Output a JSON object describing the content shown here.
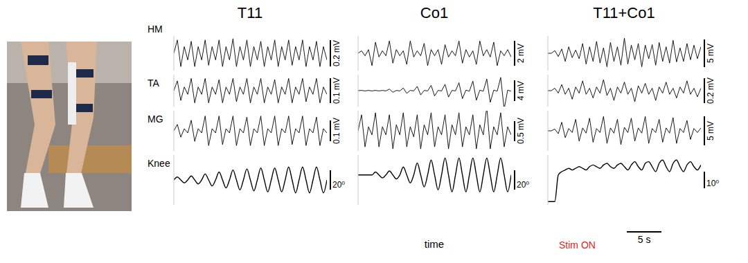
{
  "chart_data": [
    {
      "type": "line",
      "title": "T11",
      "tick_labels": false,
      "stim": 0,
      "xlim": [
        0,
        22
      ],
      "x": [
        0,
        0.5,
        1,
        1.5,
        2,
        2.5,
        3,
        3.5,
        4,
        4.5,
        5,
        5.5,
        6,
        6.5,
        7,
        7.5,
        8,
        8.5,
        9,
        9.5,
        10,
        10.5,
        11,
        11.5,
        12,
        12.5,
        13,
        13.5,
        14,
        14.5,
        15,
        15.5,
        16,
        16.5,
        17,
        17.5,
        18,
        18.5,
        19,
        19.5,
        20,
        20.5,
        21,
        21.5,
        22
      ],
      "series": [
        {
          "color": "#000000",
          "ylim": [
            -0.13,
            0.13
          ],
          "scale_bar": {
            "value": 0.2,
            "label": "0.2 mV"
          },
          "values": [
            0,
            0.1,
            -0.1,
            0.05,
            -0.05,
            0.09,
            -0.1,
            0.05,
            -0.05,
            0.1,
            -0.09,
            0.05,
            -0.05,
            0.1,
            -0.1,
            0.05,
            -0.05,
            0.11,
            -0.1,
            0.05,
            -0.05,
            0.1,
            -0.1,
            0.05,
            -0.05,
            0.09,
            -0.1,
            0.05,
            -0.05,
            0.1,
            -0.1,
            0.05,
            -0.05,
            0.1,
            -0.09,
            0.05,
            -0.05,
            0.1,
            -0.1,
            0.05,
            -0.05,
            0.09,
            -0.1,
            0.05,
            -0.05
          ]
        },
        {
          "color": "#000000",
          "ylim": [
            -0.065,
            0.065
          ],
          "scale_bar": {
            "value": 0.1,
            "label": "0.1 mV"
          },
          "values": [
            0,
            0.04,
            -0.04,
            0.015,
            -0.015,
            0.05,
            -0.05,
            0.015,
            -0.015,
            0.05,
            -0.05,
            0.015,
            -0.015,
            0.045,
            -0.05,
            0.015,
            -0.015,
            0.05,
            -0.045,
            0.015,
            -0.015,
            0.05,
            -0.05,
            0.015,
            -0.015,
            0.05,
            -0.05,
            0.015,
            -0.015,
            0.045,
            -0.05,
            0.015,
            -0.015,
            0.05,
            -0.05,
            0.015,
            -0.015,
            0.05,
            -0.045,
            0.015,
            -0.015,
            0.05,
            -0.05,
            0.015,
            -0.015
          ]
        },
        {
          "color": "#000000",
          "ylim": [
            -0.095,
            0.095
          ],
          "scale_bar": {
            "value": 0.1,
            "label": "0.1 mV"
          },
          "values": [
            0,
            0.03,
            -0.03,
            0.01,
            -0.01,
            0.05,
            -0.05,
            0.01,
            -0.01,
            0.07,
            -0.07,
            0.01,
            -0.01,
            0.07,
            -0.065,
            0.01,
            -0.01,
            0.07,
            -0.07,
            0.01,
            -0.01,
            0.065,
            -0.07,
            0.01,
            -0.01,
            0.07,
            -0.07,
            0.01,
            -0.01,
            0.07,
            -0.07,
            0.01,
            -0.01,
            0.07,
            -0.065,
            0.01,
            -0.01,
            0.07,
            -0.07,
            0.01,
            -0.01,
            0.065,
            -0.07,
            0.01,
            -0.01
          ]
        },
        {
          "color": "#000000",
          "ylim": [
            0,
            50
          ],
          "scale_bar": {
            "value": 20,
            "label": "20⁰"
          },
          "values": [
            25,
            28,
            25,
            22,
            25,
            29,
            25,
            21,
            25,
            31,
            25,
            19,
            25,
            33,
            25,
            17,
            25,
            35,
            25,
            15,
            25,
            36,
            25,
            14,
            25,
            37,
            25,
            13,
            25,
            37,
            25,
            13,
            25,
            38,
            25,
            12,
            25,
            38,
            25,
            12,
            25,
            38,
            25,
            12,
            25
          ]
        }
      ]
    },
    {
      "type": "line",
      "title": "Co1",
      "tick_labels": false,
      "stim": 2,
      "xlim": [
        0,
        22
      ],
      "x": [
        0,
        0.5,
        1,
        1.5,
        2,
        2.5,
        3,
        3.5,
        4,
        4.5,
        5,
        5.5,
        6,
        6.5,
        7,
        7.5,
        8,
        8.5,
        9,
        9.5,
        10,
        10.5,
        11,
        11.5,
        12,
        12.5,
        13,
        13.5,
        14,
        14.5,
        15,
        15.5,
        16,
        16.5,
        17,
        17.5,
        18,
        18.5,
        19,
        19.5,
        20,
        20.5,
        21,
        21.5,
        22
      ],
      "series": [
        {
          "color": "#000000",
          "ylim": [
            -1.4,
            1.4
          ],
          "scale_bar": {
            "value": 2,
            "label": "2 mV"
          },
          "values": [
            0,
            0.2,
            -0.2,
            0.3,
            -1.0,
            0.9,
            -0.3,
            0.2,
            -0.2,
            1.0,
            -0.8,
            0.3,
            -0.2,
            0.2,
            -0.9,
            1.0,
            -0.3,
            0.2,
            -0.2,
            0.8,
            -1.0,
            0.3,
            -0.2,
            0.3,
            -0.9,
            0.7,
            -0.3,
            0.2,
            -0.2,
            1.0,
            -0.8,
            0.3,
            -0.3,
            0.2,
            -0.9,
            1.0,
            -0.2,
            0.3,
            -0.3,
            0.9,
            -1.0,
            0.2,
            -0.2,
            0.3,
            -0.3
          ]
        },
        {
          "color": "#000000",
          "ylim": [
            -3,
            3
          ],
          "scale_bar": {
            "value": 4,
            "label": "4 mV"
          },
          "values": [
            0,
            0.05,
            -0.05,
            0.05,
            -0.05,
            0.05,
            -0.05,
            0.05,
            -0.05,
            0.3,
            -0.3,
            0.05,
            -0.05,
            0.5,
            -0.5,
            0.05,
            -0.05,
            0.8,
            -0.8,
            0.05,
            -0.05,
            1.0,
            -1.0,
            0.05,
            -0.05,
            1.2,
            -1.2,
            0.05,
            -0.05,
            1.5,
            -1.5,
            0.1,
            -0.1,
            1.8,
            -1.8,
            0.1,
            -0.1,
            2.2,
            -2.2,
            0.1,
            -0.1,
            2.5,
            -3.5,
            0.1,
            -0.1
          ]
        },
        {
          "color": "#000000",
          "ylim": [
            -0.5,
            0.5
          ],
          "scale_bar": {
            "value": 0.5,
            "label": "0.5 mV"
          },
          "values": [
            0,
            0.4,
            -0.4,
            0.1,
            -0.1,
            0.45,
            -0.4,
            0.1,
            -0.1,
            0.4,
            -0.45,
            0.15,
            -0.1,
            0.45,
            -0.4,
            0.1,
            -0.15,
            0.4,
            -0.45,
            0.15,
            -0.1,
            0.45,
            -0.4,
            0.1,
            -0.1,
            0.4,
            -0.45,
            0.15,
            -0.1,
            0.45,
            -0.4,
            0.1,
            -0.1,
            0.4,
            -0.45,
            0.15,
            -0.1,
            0.6,
            -0.45,
            0.1,
            -0.1,
            0.45,
            -0.4,
            0.1,
            -0.1
          ]
        },
        {
          "color": "#000000",
          "ylim": [
            0,
            50
          ],
          "scale_bar": {
            "value": 20,
            "label": "20⁰"
          },
          "values": [
            30,
            30,
            30,
            30,
            30,
            33,
            30,
            27,
            30,
            34,
            30,
            26,
            30,
            38,
            30,
            22,
            30,
            42,
            30,
            18,
            30,
            45,
            30,
            15,
            30,
            47,
            30,
            13,
            30,
            47,
            30,
            13,
            30,
            47,
            30,
            13,
            30,
            47,
            30,
            13,
            30,
            47,
            30,
            13,
            30
          ]
        }
      ]
    },
    {
      "type": "line",
      "title": "T11+Co1",
      "tick_labels": false,
      "stim": 1,
      "xlim": [
        0,
        22
      ],
      "x": [
        0,
        0.5,
        1,
        1.5,
        2,
        2.5,
        3,
        3.5,
        4,
        4.5,
        5,
        5.5,
        6,
        6.5,
        7,
        7.5,
        8,
        8.5,
        9,
        9.5,
        10,
        10.5,
        11,
        11.5,
        12,
        12.5,
        13,
        13.5,
        14,
        14.5,
        15,
        15.5,
        16,
        16.5,
        17,
        17.5,
        18,
        18.5,
        19,
        19.5,
        20,
        20.5,
        21,
        21.5,
        22
      ],
      "series": [
        {
          "color": "#000000",
          "ylim": [
            -3.2,
            3.2
          ],
          "scale_bar": {
            "value": 5,
            "label": "5 mV"
          },
          "values": [
            0,
            0,
            0.5,
            -0.6,
            0.8,
            -1.5,
            1.2,
            -0.8,
            0.6,
            -1.0,
            1.8,
            -2.0,
            1.2,
            -1.5,
            2.2,
            -1.8,
            1.0,
            -2.5,
            2.0,
            -1.5,
            1.2,
            -2.2,
            2.8,
            -2.0,
            1.5,
            -1.2,
            1.8,
            -2.5,
            1.5,
            -1.0,
            1.6,
            -2.2,
            2.0,
            -1.5,
            1.2,
            -1.8,
            2.4,
            -1.6,
            1.0,
            -1.5,
            1.8,
            -1.2,
            1.5,
            -1.0,
            1.2
          ]
        },
        {
          "color": "#000000",
          "ylim": [
            -0.13,
            0.13
          ],
          "scale_bar": {
            "value": 0.2,
            "label": "0.2 mV"
          },
          "values": [
            0,
            0,
            0.02,
            -0.02,
            0.05,
            -0.03,
            0.02,
            -0.07,
            0.03,
            -0.02,
            0.08,
            -0.03,
            0.02,
            -0.06,
            0.03,
            -0.02,
            0.09,
            -0.04,
            0.02,
            -0.08,
            0.03,
            -0.02,
            0.07,
            -0.03,
            0.02,
            -0.09,
            0.04,
            -0.02,
            0.06,
            -0.03,
            0.02,
            -0.08,
            0.03,
            -0.02,
            0.07,
            -0.03,
            0.02,
            -0.06,
            0.03,
            -0.02,
            0.08,
            -0.03,
            0.02,
            -0.05,
            0.02
          ]
        },
        {
          "color": "#000000",
          "ylim": [
            -3.5,
            3.5
          ],
          "scale_bar": {
            "value": 5,
            "label": "5 mV"
          },
          "values": [
            0,
            0,
            0.3,
            -0.5,
            1.5,
            -1.2,
            0.4,
            -0.3,
            2.0,
            -1.8,
            0.5,
            -0.4,
            2.2,
            -2.0,
            0.4,
            -0.3,
            2.5,
            -2.2,
            0.5,
            -0.4,
            2.0,
            -2.4,
            0.6,
            -0.3,
            2.2,
            -1.8,
            0.5,
            -0.4,
            2.5,
            -2.2,
            0.4,
            -0.3,
            2.0,
            -2.0,
            0.5,
            -0.4,
            2.3,
            -2.2,
            0.4,
            -0.3,
            1.8,
            -1.5,
            0.4,
            -0.3,
            0.5
          ]
        },
        {
          "color": "#000000",
          "ylim": [
            0,
            30
          ],
          "scale_bar": {
            "value": 10,
            "label": "10⁰"
          },
          "values": [
            2,
            2,
            2,
            18,
            20,
            21,
            22,
            21,
            22,
            23,
            22,
            21,
            23,
            24,
            23,
            22,
            24,
            25,
            23,
            22,
            24,
            25,
            23,
            21,
            24,
            26,
            23,
            21,
            25,
            26,
            23,
            20,
            25,
            27,
            23,
            20,
            25,
            27,
            23,
            20,
            24,
            26,
            23,
            21,
            24
          ]
        }
      ]
    }
  ],
  "row_labels": [
    "HM",
    "TA",
    "MG",
    "Knee"
  ],
  "time_label": "time",
  "stim_label": "Stim ON",
  "time_bar": {
    "value": 5,
    "label": "5 s"
  }
}
